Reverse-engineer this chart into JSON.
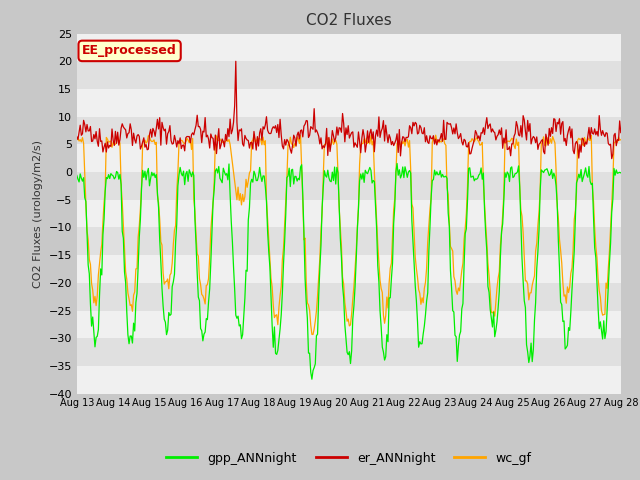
{
  "title": "CO2 Fluxes",
  "ylabel": "CO2 Fluxes (urology/m2/s)",
  "ylim": [
    -40,
    25
  ],
  "yticks": [
    -40,
    -35,
    -30,
    -25,
    -20,
    -15,
    -10,
    -5,
    0,
    5,
    10,
    15,
    20,
    25
  ],
  "x_labels": [
    "Aug 13",
    "Aug 14",
    "Aug 15",
    "Aug 16",
    "Aug 17",
    "Aug 18",
    "Aug 19",
    "Aug 20",
    "Aug 21",
    "Aug 22",
    "Aug 23",
    "Aug 24",
    "Aug 25",
    "Aug 26",
    "Aug 27",
    "Aug 28"
  ],
  "fig_bg_color": "#c8c8c8",
  "plot_bg_color": "#e0e0e0",
  "band_color": "#f0f0f0",
  "legend_labels": [
    "gpp_ANNnight",
    "er_ANNnight",
    "wc_gf"
  ],
  "legend_colors": [
    "#00ee00",
    "#cc0000",
    "#ffa500"
  ],
  "line_colors": {
    "gpp": "#00ee00",
    "er": "#cc0000",
    "wc": "#ffa500"
  },
  "annotation_text": "EE_processed",
  "annotation_bg": "#ffffcc",
  "annotation_border": "#cc0000",
  "n_points": 480
}
